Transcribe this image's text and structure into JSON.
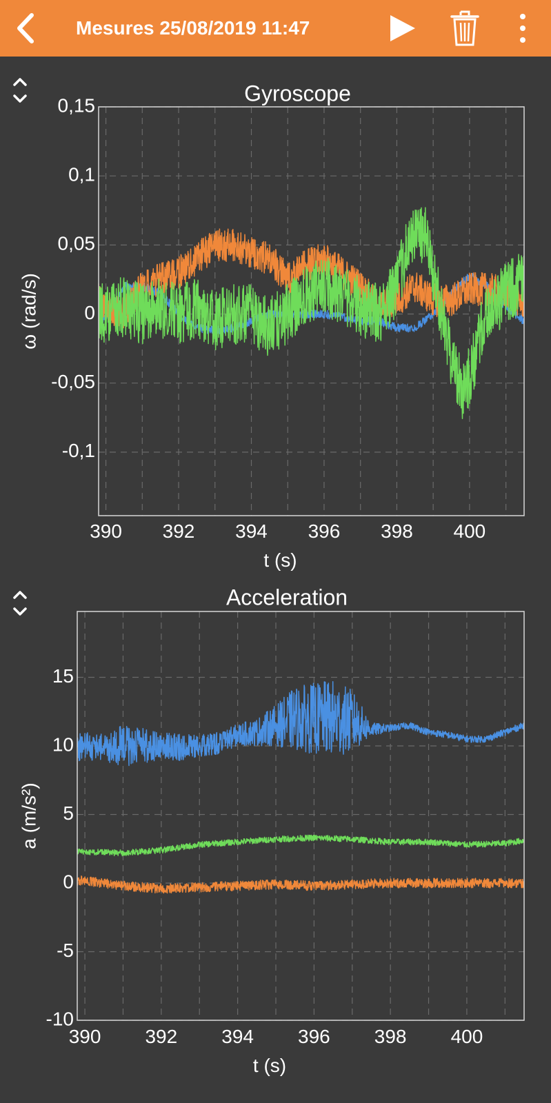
{
  "header": {
    "title": "Mesures 25/08/2019 11:47",
    "back_icon": "chevron-left-icon",
    "play_icon": "play-icon",
    "delete_icon": "trash-icon",
    "menu_icon": "more-vertical-icon",
    "background": "#f0883a"
  },
  "chart_data": [
    {
      "type": "line",
      "title": "Gyroscope",
      "xlabel": "t (s)",
      "ylabel": "ω (rad/s)",
      "xlim": [
        389.8,
        401.5
      ],
      "ylim": [
        -0.146,
        0.15
      ],
      "xticks": [
        390,
        392,
        394,
        396,
        398,
        400
      ],
      "xtick_labels": [
        "390",
        "392",
        "394",
        "396",
        "398",
        "400"
      ],
      "yticks": [
        0.15,
        0.1,
        0.05,
        0,
        -0.05,
        -0.1
      ],
      "ytick_labels": [
        "0,15",
        "0,1",
        "0,05",
        "0",
        "-0,05",
        "-0,1"
      ],
      "grid": true,
      "series": [
        {
          "color": "#4a90e2",
          "noise": 0.003,
          "x": [
            389.8,
            390.5,
            391.0,
            391.5,
            392.0,
            392.5,
            393.0,
            393.5,
            394.0,
            394.5,
            395.0,
            395.5,
            396.0,
            396.5,
            397.0,
            397.5,
            398.0,
            398.5,
            399.0,
            399.5,
            400.0,
            400.5,
            401.0,
            401.5
          ],
          "y": [
            -0.01,
            0.02,
            0.02,
            0.015,
            0.0,
            -0.01,
            -0.012,
            -0.01,
            -0.005,
            0.0,
            0.0,
            0.0,
            0.0,
            -0.002,
            -0.005,
            -0.005,
            -0.01,
            -0.01,
            0.0,
            0.015,
            0.028,
            0.02,
            0.005,
            -0.005
          ]
        },
        {
          "color": "#f0883a",
          "noise": 0.012,
          "x": [
            389.8,
            390.0,
            390.5,
            391.0,
            391.5,
            392.0,
            392.5,
            393.0,
            393.5,
            394.0,
            394.5,
            395.0,
            395.5,
            396.0,
            396.5,
            397.0,
            397.5,
            398.0,
            398.5,
            399.0,
            399.5,
            400.0,
            400.5,
            401.0,
            401.5
          ],
          "y": [
            0.015,
            0.005,
            0.0,
            0.02,
            0.025,
            0.03,
            0.04,
            0.05,
            0.05,
            0.045,
            0.04,
            0.025,
            0.035,
            0.04,
            0.03,
            0.02,
            0.005,
            0.01,
            0.02,
            0.01,
            0.01,
            0.018,
            0.018,
            0.015,
            0.008
          ]
        },
        {
          "color": "#6fdc5a",
          "noise": 0.022,
          "x": [
            389.8,
            390.5,
            391.0,
            391.5,
            392.0,
            392.5,
            393.0,
            393.5,
            394.0,
            394.5,
            395.0,
            395.5,
            396.0,
            396.5,
            397.0,
            397.5,
            398.0,
            398.2,
            398.5,
            398.8,
            399.0,
            399.3,
            399.6,
            399.8,
            400.0,
            400.3,
            400.6,
            401.0,
            401.5
          ],
          "y": [
            0.0,
            0.005,
            0.0,
            0.005,
            0.0,
            0.005,
            -0.005,
            0.0,
            0.0,
            -0.01,
            0.0,
            0.015,
            0.02,
            0.015,
            0.005,
            0.0,
            0.02,
            0.04,
            0.06,
            0.055,
            0.03,
            -0.01,
            -0.04,
            -0.055,
            -0.045,
            -0.015,
            0.005,
            0.015,
            0.025
          ]
        }
      ]
    },
    {
      "type": "line",
      "title": "Acceleration",
      "xlabel": "t (s)",
      "ylabel": "a (m/s²)",
      "xlim": [
        389.8,
        401.5
      ],
      "ylim": [
        -10,
        19.8
      ],
      "xticks": [
        390,
        392,
        394,
        396,
        398,
        400
      ],
      "xtick_labels": [
        "390",
        "392",
        "394",
        "396",
        "398",
        "400"
      ],
      "yticks": [
        15,
        10,
        5,
        0,
        -5,
        -10
      ],
      "ytick_labels": [
        "15",
        "10",
        "5",
        "0",
        "-5",
        "-10"
      ],
      "grid": true,
      "series": [
        {
          "color": "#4a90e2",
          "x": [
            389.8,
            390.5,
            391.0,
            391.5,
            392.0,
            392.5,
            393.0,
            393.5,
            394.0,
            394.5,
            395.0,
            395.5,
            396.0,
            396.5,
            397.0,
            397.5,
            398.0,
            398.5,
            399.0,
            399.5,
            400.0,
            400.5,
            401.0,
            401.5
          ],
          "y": [
            10.0,
            9.9,
            10.0,
            10.0,
            10.0,
            9.9,
            10.0,
            10.2,
            10.8,
            11.0,
            11.5,
            12.0,
            12.0,
            12.0,
            11.8,
            11.2,
            11.3,
            11.5,
            11.0,
            10.8,
            10.5,
            10.5,
            11.0,
            11.5
          ],
          "noise": [
            1.2,
            1.0,
            1.5,
            1.3,
            1.0,
            1.0,
            0.8,
            0.8,
            0.8,
            1.0,
            1.5,
            2.3,
            2.6,
            2.8,
            2.3,
            0.5,
            0.25,
            0.25,
            0.25,
            0.25,
            0.25,
            0.25,
            0.25,
            0.25
          ]
        },
        {
          "color": "#6fdc5a",
          "noise": 0.22,
          "x": [
            389.8,
            391.0,
            392.0,
            393.0,
            394.0,
            395.0,
            396.0,
            397.0,
            398.0,
            399.0,
            400.0,
            401.0,
            401.5
          ],
          "y": [
            2.3,
            2.2,
            2.4,
            2.8,
            3.0,
            3.2,
            3.3,
            3.2,
            3.0,
            3.0,
            2.8,
            2.9,
            3.1
          ]
        },
        {
          "color": "#f0883a",
          "noise": 0.35,
          "x": [
            389.8,
            390.5,
            391.0,
            391.5,
            392.0,
            393.0,
            394.0,
            395.0,
            396.0,
            397.0,
            398.0,
            399.0,
            400.0,
            401.0,
            401.5
          ],
          "y": [
            0.2,
            0.0,
            -0.2,
            -0.3,
            -0.4,
            -0.3,
            -0.2,
            -0.1,
            -0.2,
            -0.1,
            0.0,
            0.0,
            0.0,
            0.0,
            0.0
          ]
        }
      ]
    }
  ]
}
